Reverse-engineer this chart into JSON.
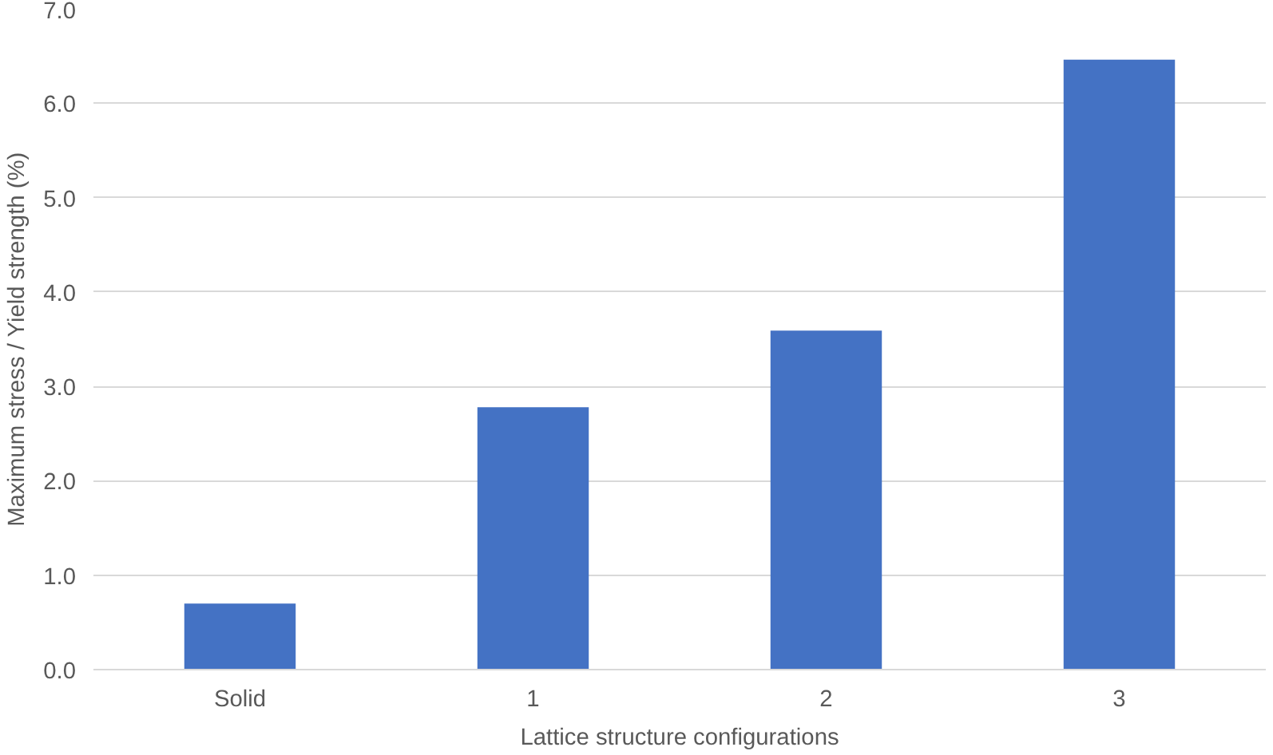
{
  "chart_data": {
    "type": "bar",
    "xlabel": "Lattice structure configurations",
    "ylabel": "Maximum stress / Yield strength (%)",
    "categories": [
      "Solid",
      "1",
      "2",
      "3"
    ],
    "values": [
      0.7,
      2.78,
      3.59,
      6.46
    ],
    "color": "#4472c4",
    "ylim": [
      0,
      7
    ],
    "yticks": [
      {
        "value": 0,
        "label": "0.0"
      },
      {
        "value": 1,
        "label": "1.0"
      },
      {
        "value": 2,
        "label": "2.0"
      },
      {
        "value": 3,
        "label": "3.0"
      },
      {
        "value": 4,
        "label": "4.0"
      },
      {
        "value": 5,
        "label": "5.0"
      },
      {
        "value": 6,
        "label": "6.0"
      },
      {
        "value": 7,
        "label": "7.0"
      }
    ],
    "grid": "y"
  }
}
